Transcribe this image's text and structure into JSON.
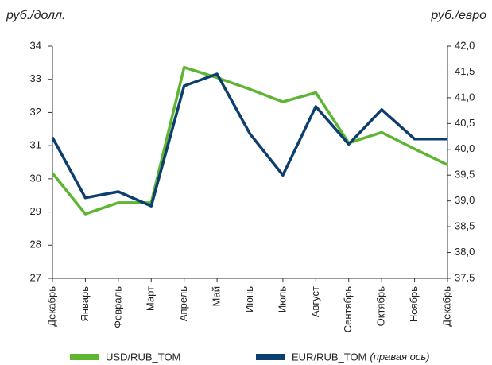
{
  "chart_data": {
    "type": "line",
    "y_label": "руб./долл.",
    "y2_label": "руб./евро",
    "categories": [
      "Декабрь",
      "Январь",
      "Февраль",
      "Март",
      "Апрель",
      "Май",
      "Июнь",
      "Июль",
      "Август",
      "Сентябрь",
      "Октябрь",
      "Ноябрь",
      "Декабрь"
    ],
    "series": [
      {
        "name": "USD/RUB_TOM",
        "color": "#5db531",
        "values": [
          30.17,
          28.94,
          29.28,
          29.28,
          33.36,
          33.05,
          32.7,
          32.32,
          32.6,
          31.08,
          31.4,
          30.9,
          30.42
        ]
      },
      {
        "name": "EUR/RUB_TOM",
        "note": "(правая ось)",
        "color": "#0d3f6e",
        "axis": "y2",
        "values": [
          40.23,
          39.06,
          39.18,
          38.9,
          41.23,
          41.46,
          40.3,
          39.5,
          40.83,
          40.1,
          40.77,
          40.2,
          40.2
        ]
      }
    ],
    "ylim": [
      27,
      34
    ],
    "yticks": [
      27,
      28,
      29,
      30,
      31,
      32,
      33,
      34
    ],
    "y2lim": [
      37.5,
      42.0
    ],
    "y2ticks": [
      {
        "value": 37.5,
        "label": "37,5"
      },
      {
        "value": 38.0,
        "label": "38,0"
      },
      {
        "value": 38.5,
        "label": "38,5"
      },
      {
        "value": 39.0,
        "label": "39,0"
      },
      {
        "value": 39.5,
        "label": "39,5"
      },
      {
        "value": 40.0,
        "label": "40,0"
      },
      {
        "value": 40.5,
        "label": "40,5"
      },
      {
        "value": 41.0,
        "label": "41,0"
      },
      {
        "value": 41.5,
        "label": "41,5"
      },
      {
        "value": 42.0,
        "label": "42,0"
      }
    ]
  }
}
